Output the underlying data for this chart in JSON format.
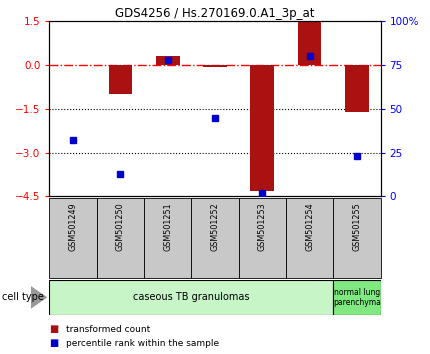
{
  "title": "GDS4256 / Hs.270169.0.A1_3p_at",
  "samples": [
    "GSM501249",
    "GSM501250",
    "GSM501251",
    "GSM501252",
    "GSM501253",
    "GSM501254",
    "GSM501255"
  ],
  "transformed_counts": [
    0.0,
    -1.0,
    0.3,
    -0.05,
    -4.3,
    1.5,
    -1.6
  ],
  "percentile_ranks": [
    32,
    13,
    78,
    45,
    2,
    80,
    23
  ],
  "group1_label": "caseous TB granulomas",
  "group1_count": 6,
  "group1_color": "#c8f5c8",
  "group2_label": "normal lung\nparenchyma",
  "group2_count": 1,
  "group2_color": "#80e880",
  "ylim_left": [
    -4.5,
    1.5
  ],
  "ylim_right": [
    0,
    100
  ],
  "yticks_left": [
    1.5,
    0,
    -1.5,
    -3,
    -4.5
  ],
  "yticks_right": [
    0,
    25,
    50,
    75,
    100
  ],
  "ytick_labels_right": [
    "0",
    "25",
    "50",
    "75",
    "100%"
  ],
  "bar_color": "#aa1111",
  "dot_color": "#0000cc",
  "dotted_lines": [
    -1.5,
    -3
  ],
  "cell_type_label": "cell type",
  "legend_label1": "transformed count",
  "legend_label2": "percentile rank within the sample",
  "sample_label_bg": "#c8c8c8"
}
